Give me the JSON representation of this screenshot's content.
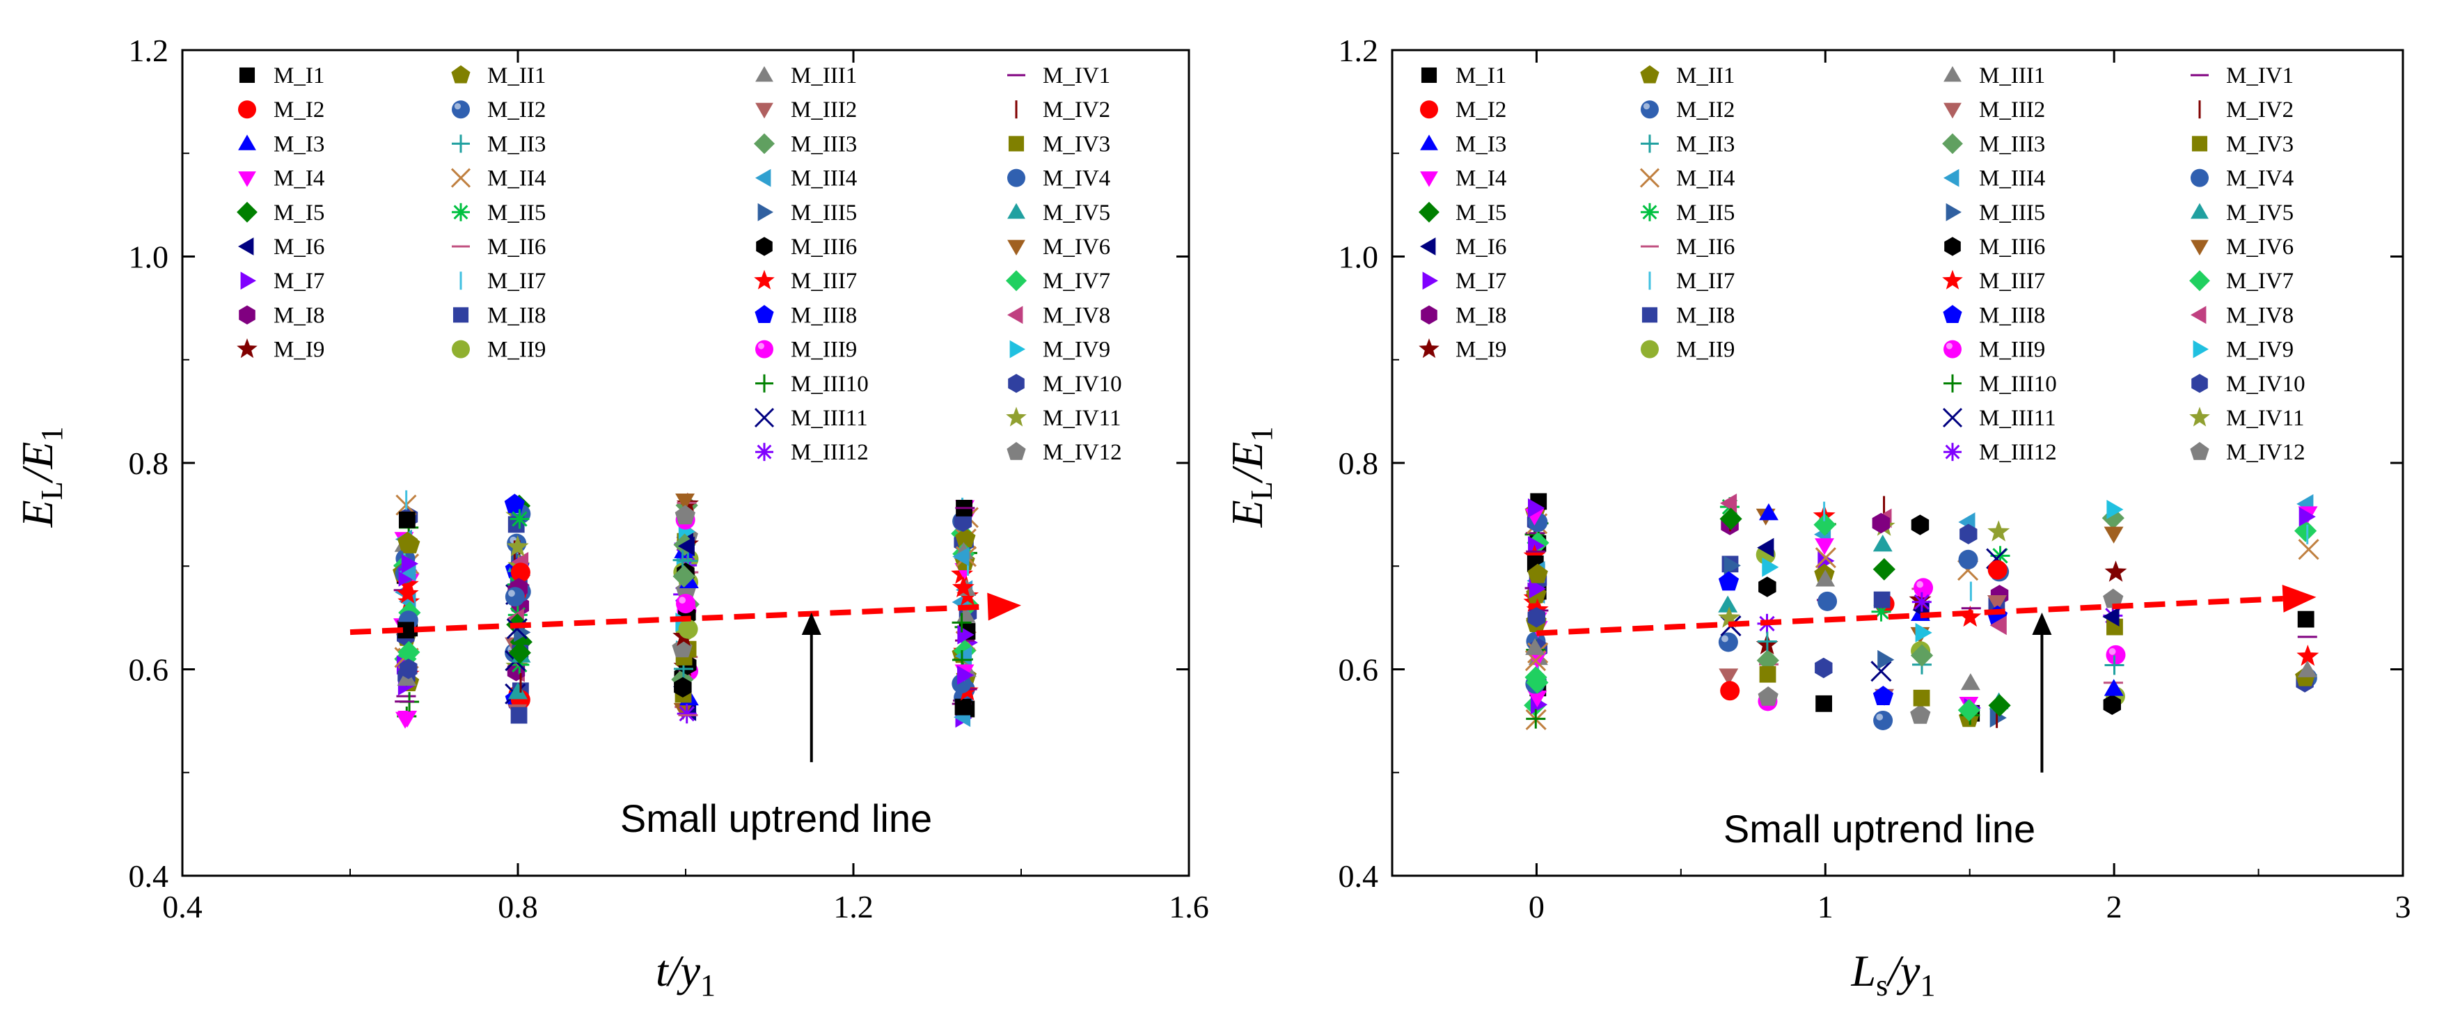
{
  "chart_data": [
    {
      "type": "scatter",
      "panel": "left",
      "xlabel": {
        "main": "t/y",
        "sub": "1"
      },
      "ylabel": {
        "main": "E",
        "sub1": "L",
        "mid": "/E",
        "sub2": "1"
      },
      "xlim": [
        0.4,
        1.6
      ],
      "ylim": [
        0.4,
        1.2
      ],
      "xticks": [
        "0.4",
        "0.8",
        "1.2",
        "1.6"
      ],
      "yticks": [
        "0.4",
        "0.6",
        "0.8",
        "1.0",
        "1.2"
      ],
      "x_groups": [
        0.667,
        0.8,
        1.0,
        1.333
      ],
      "y_range": [
        0.55,
        0.765
      ],
      "trend_line": {
        "x": [
          0.6,
          1.4
        ],
        "y": [
          0.636,
          0.662
        ],
        "color": "#ff0000"
      },
      "annotation": {
        "text": "Small uptrend line",
        "arrow_x": 1.15,
        "arrow_from_y": 0.51,
        "arrow_to_y": 0.655
      }
    },
    {
      "type": "scatter",
      "panel": "right",
      "xlabel": {
        "main": "L",
        "sub1": "s",
        "mid": "/y",
        "sub2": "1"
      },
      "ylabel": {
        "main": "E",
        "sub1": "L",
        "mid": "/E",
        "sub2": "1"
      },
      "xlim": [
        -0.5,
        3.0
      ],
      "ylim": [
        0.4,
        1.2
      ],
      "xticks": [
        "0",
        "1",
        "2",
        "3"
      ],
      "yticks": [
        "0.4",
        "0.6",
        "0.8",
        "1.0",
        "1.2"
      ],
      "x_groups": [
        0,
        0.667,
        0.8,
        1.0,
        1.2,
        1.333,
        1.5,
        1.6,
        2.0,
        2.667
      ],
      "y_range": [
        0.55,
        0.765
      ],
      "trend_line": {
        "x": [
          0,
          2.7
        ],
        "y": [
          0.635,
          0.67
        ],
        "color": "#ff0000"
      },
      "annotation": {
        "text": "Small uptrend line",
        "arrow_x": 1.75,
        "arrow_from_y": 0.5,
        "arrow_to_y": 0.655
      }
    }
  ],
  "legend": {
    "columns": [
      [
        {
          "name": "M_I1",
          "marker": "square",
          "color": "#000000"
        },
        {
          "name": "M_I2",
          "marker": "circle",
          "color": "#ff0000"
        },
        {
          "name": "M_I3",
          "marker": "triangle-up",
          "color": "#0000ff"
        },
        {
          "name": "M_I4",
          "marker": "triangle-down",
          "color": "#ff00ff"
        },
        {
          "name": "M_I5",
          "marker": "diamond",
          "color": "#008000"
        },
        {
          "name": "M_I6",
          "marker": "triangle-left",
          "color": "#000080"
        },
        {
          "name": "M_I7",
          "marker": "triangle-right",
          "color": "#8000ff"
        },
        {
          "name": "M_I8",
          "marker": "hexagon",
          "color": "#800080"
        },
        {
          "name": "M_I9",
          "marker": "star",
          "color": "#800000"
        }
      ],
      [
        {
          "name": "M_II1",
          "marker": "pentagon",
          "color": "#808000"
        },
        {
          "name": "M_II2",
          "marker": "sphere",
          "color": "#3060b0"
        },
        {
          "name": "M_II3",
          "marker": "plus",
          "color": "#20a0a0"
        },
        {
          "name": "M_II4",
          "marker": "cross",
          "color": "#c08040"
        },
        {
          "name": "M_II5",
          "marker": "asterisk",
          "color": "#00c040"
        },
        {
          "name": "M_II6",
          "marker": "hline",
          "color": "#c05080"
        },
        {
          "name": "M_II7",
          "marker": "vline",
          "color": "#40c0e0"
        },
        {
          "name": "M_II8",
          "marker": "square",
          "color": "#3040a0"
        },
        {
          "name": "M_II9",
          "marker": "circle",
          "color": "#90b030"
        }
      ],
      [
        {
          "name": "M_III1",
          "marker": "triangle-up",
          "color": "#808080"
        },
        {
          "name": "M_III2",
          "marker": "triangle-down",
          "color": "#b06060"
        },
        {
          "name": "M_III3",
          "marker": "diamond",
          "color": "#60a060"
        },
        {
          "name": "M_III4",
          "marker": "triangle-left",
          "color": "#30a0d0"
        },
        {
          "name": "M_III5",
          "marker": "triangle-right",
          "color": "#3060a0"
        },
        {
          "name": "M_III6",
          "marker": "hexagon",
          "color": "#000000"
        },
        {
          "name": "M_III7",
          "marker": "star",
          "color": "#ff0000"
        },
        {
          "name": "M_III8",
          "marker": "pentagon",
          "color": "#0000ff"
        },
        {
          "name": "M_III9",
          "marker": "sphere",
          "color": "#ff00ff"
        },
        {
          "name": "M_III10",
          "marker": "plus",
          "color": "#008000"
        },
        {
          "name": "M_III11",
          "marker": "cross",
          "color": "#000080"
        },
        {
          "name": "M_III12",
          "marker": "asterisk",
          "color": "#8000ff"
        }
      ],
      [
        {
          "name": "M_IV1",
          "marker": "hline",
          "color": "#800080"
        },
        {
          "name": "M_IV2",
          "marker": "vline",
          "color": "#800000"
        },
        {
          "name": "M_IV3",
          "marker": "square",
          "color": "#808000"
        },
        {
          "name": "M_IV4",
          "marker": "circle",
          "color": "#3060b0"
        },
        {
          "name": "M_IV5",
          "marker": "triangle-up",
          "color": "#20a0a0"
        },
        {
          "name": "M_IV6",
          "marker": "triangle-down",
          "color": "#a06020"
        },
        {
          "name": "M_IV7",
          "marker": "diamond",
          "color": "#20d060"
        },
        {
          "name": "M_IV8",
          "marker": "triangle-left",
          "color": "#c04080"
        },
        {
          "name": "M_IV9",
          "marker": "triangle-right",
          "color": "#20c0e0"
        },
        {
          "name": "M_IV10",
          "marker": "hexagon",
          "color": "#3040a0"
        },
        {
          "name": "M_IV11",
          "marker": "star",
          "color": "#90a030"
        },
        {
          "name": "M_IV12",
          "marker": "pentagon",
          "color": "#808080"
        }
      ]
    ]
  }
}
